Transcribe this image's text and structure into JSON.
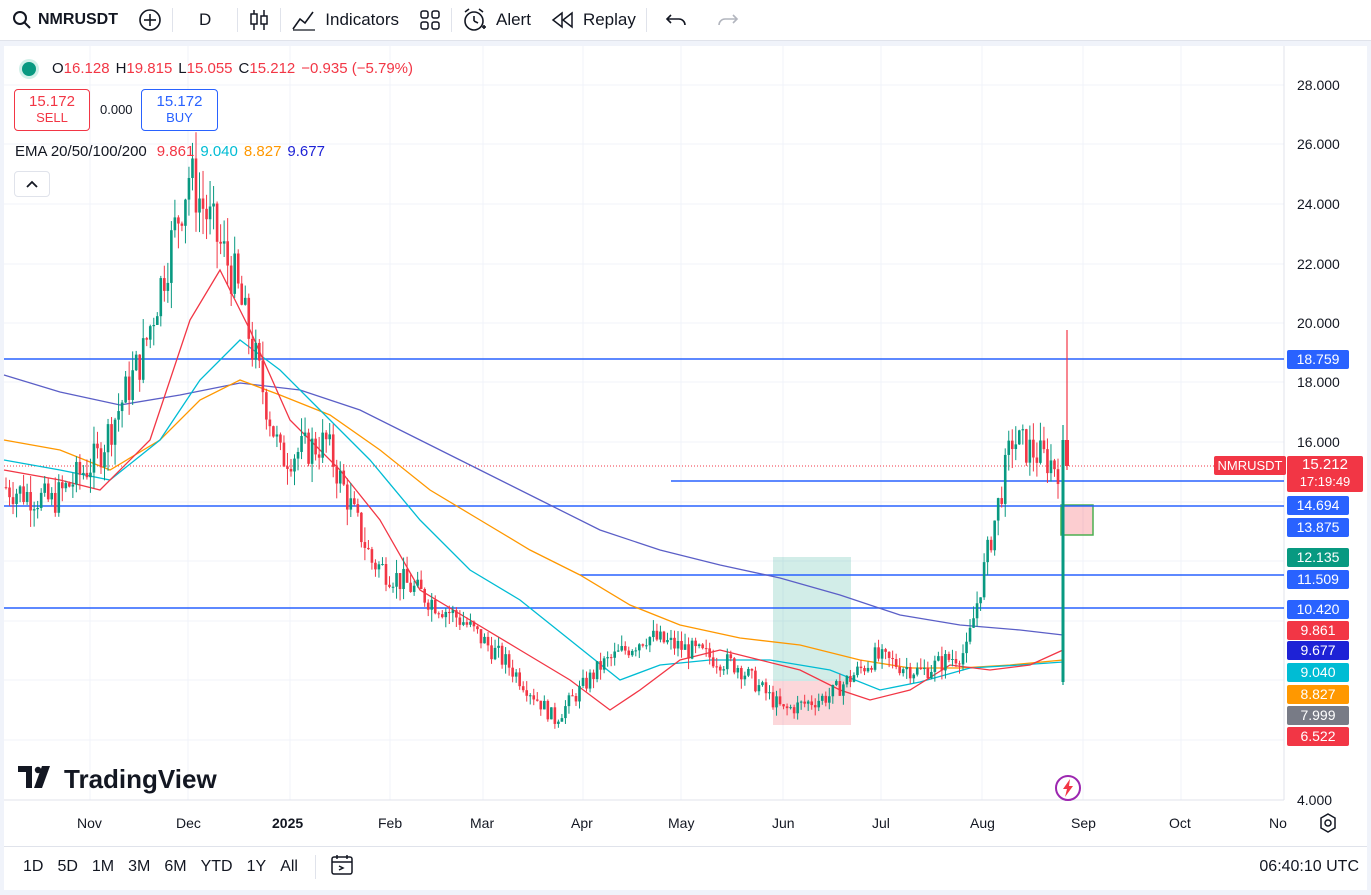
{
  "toolbar": {
    "symbol": "NMRUSDT",
    "interval": "D",
    "indicators": "Indicators",
    "alert": "Alert",
    "replay": "Replay"
  },
  "legend": {
    "o_k": "O",
    "o": "16.128",
    "h_k": "H",
    "h": "19.815",
    "l_k": "L",
    "l": "15.055",
    "c_k": "C",
    "c": "15.212",
    "chg": "−0.935 (−5.79%)"
  },
  "trade": {
    "sell_price": "15.172",
    "sell_label": "SELL",
    "spread": "0.000",
    "buy_price": "15.172",
    "buy_label": "BUY"
  },
  "ema": {
    "label": "EMA 20/50/100/200",
    "v20": "9.861",
    "v50": "9.040",
    "v100": "8.827",
    "v200": "9.677"
  },
  "price_axis": [
    "28.000",
    "26.000",
    "24.000",
    "22.000",
    "20.000",
    "18.000",
    "16.000",
    "4.000"
  ],
  "price_labels": [
    {
      "text": "18.759",
      "color": "#2962ff"
    },
    {
      "text": "14.694",
      "color": "#2962ff"
    },
    {
      "text": "13.875",
      "color": "#2962ff"
    },
    {
      "text": "12.135",
      "color": "#089981"
    },
    {
      "text": "11.509",
      "color": "#2962ff"
    },
    {
      "text": "10.420",
      "color": "#2962ff"
    },
    {
      "text": "9.861",
      "color": "#f23645"
    },
    {
      "text": "9.677",
      "color": "#1e22d6"
    },
    {
      "text": "9.040",
      "color": "#00bcd4"
    },
    {
      "text": "8.827",
      "color": "#ff9800"
    },
    {
      "text": "7.999",
      "color": "#787b86"
    },
    {
      "text": "6.522",
      "color": "#f23645"
    }
  ],
  "last_price": {
    "symbol": "NMRUSDT",
    "price": "15.212",
    "countdown": "17:19:49"
  },
  "time_axis": [
    "Nov",
    "Dec",
    "2025",
    "Feb",
    "Mar",
    "Apr",
    "May",
    "Jun",
    "Jul",
    "Aug",
    "Sep",
    "Oct",
    "No"
  ],
  "ranges": [
    "1D",
    "5D",
    "1M",
    "3M",
    "6M",
    "YTD",
    "1Y",
    "All"
  ],
  "clock": "06:40:10 UTC",
  "brand": "TradingView",
  "colors": {
    "up": "#089981",
    "down": "#f23645",
    "line": "#2962ff"
  },
  "chart_data": {
    "type": "line",
    "title": "NMRUSDT",
    "ylim": [
      4,
      28
    ],
    "horizontal_levels": [
      18.759,
      14.694,
      11.509,
      10.42
    ],
    "close_series": [
      {
        "x": "Oct",
        "y": 14.5
      },
      {
        "x": "Nov",
        "y": 14.0
      },
      {
        "x": "Nov",
        "y": 15.5
      },
      {
        "x": "Dec",
        "y": 19.0
      },
      {
        "x": "Dec",
        "y": 25.0
      },
      {
        "x": "Dec",
        "y": 21.5
      },
      {
        "x": "Dec",
        "y": 15.5
      },
      {
        "x": "2025",
        "y": 16.0
      },
      {
        "x": "Feb",
        "y": 12.0
      },
      {
        "x": "Feb",
        "y": 11.0
      },
      {
        "x": "Mar",
        "y": 10.0
      },
      {
        "x": "Mar",
        "y": 8.5
      },
      {
        "x": "Apr",
        "y": 6.7
      },
      {
        "x": "Apr",
        "y": 8.5
      },
      {
        "x": "May",
        "y": 9.5
      },
      {
        "x": "May",
        "y": 9.0
      },
      {
        "x": "Jun",
        "y": 8.5
      },
      {
        "x": "Jun",
        "y": 7.0
      },
      {
        "x": "Jul",
        "y": 7.5
      },
      {
        "x": "Jul",
        "y": 8.8
      },
      {
        "x": "Aug",
        "y": 8.3
      },
      {
        "x": "Aug",
        "y": 9.0
      },
      {
        "x": "Sep",
        "y": 16.1
      },
      {
        "x": "Sep",
        "y": 15.2
      }
    ]
  }
}
